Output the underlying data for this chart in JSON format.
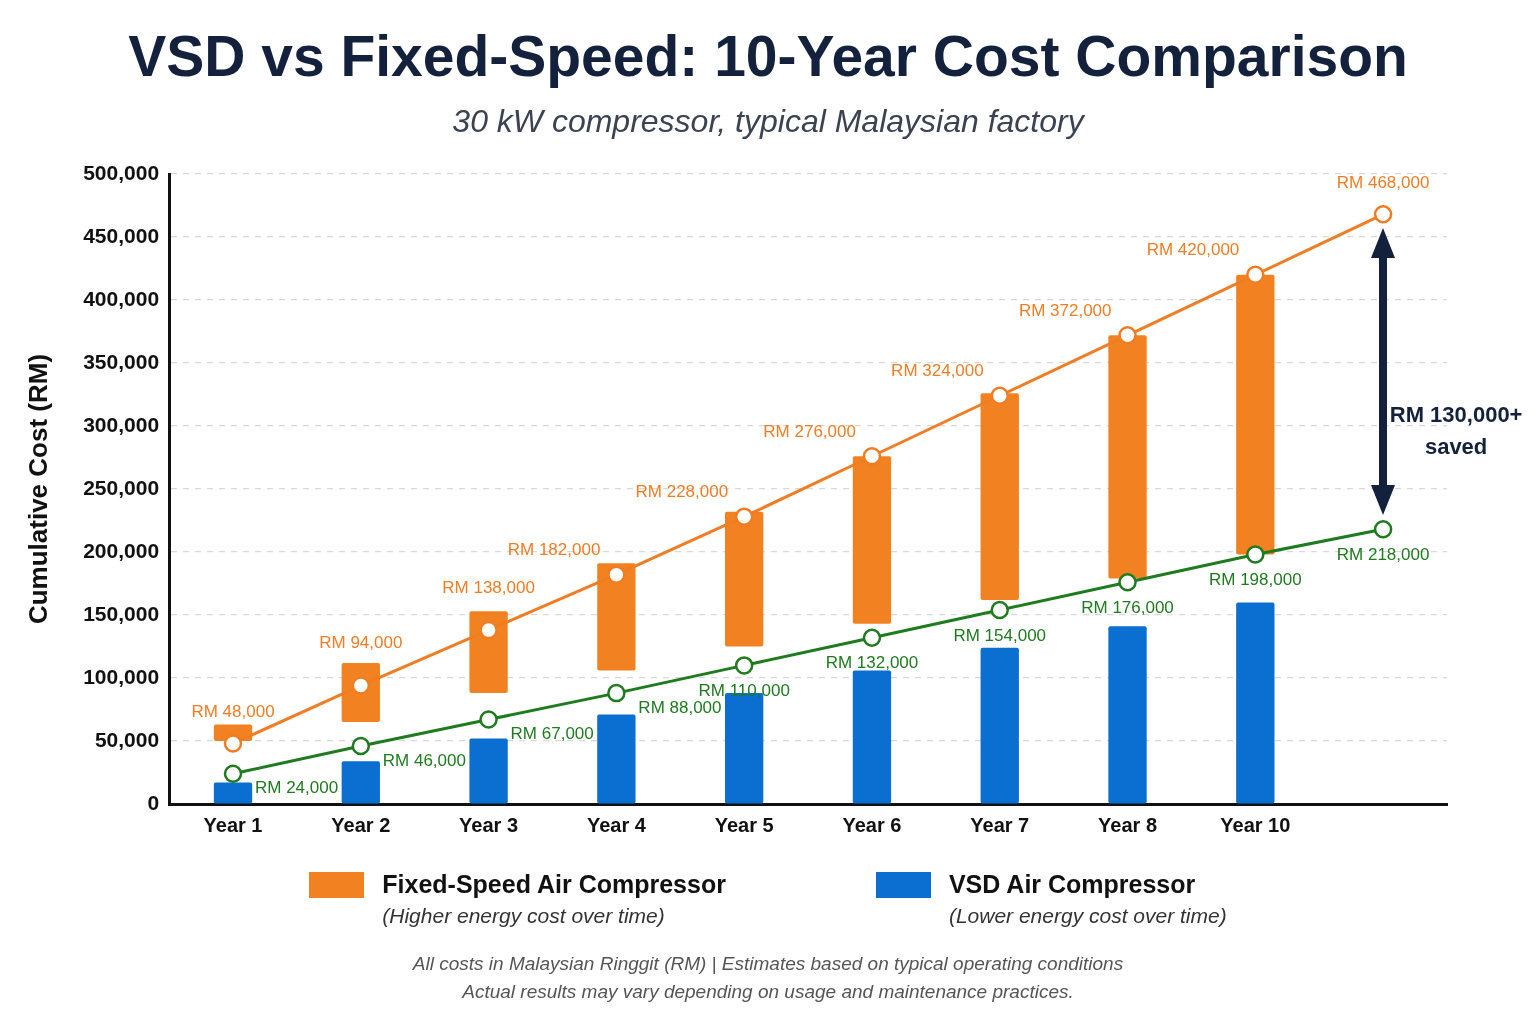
{
  "chart_data": {
    "type": "bar",
    "title": "VSD vs Fixed-Speed: 10-Year Cost Comparison",
    "subtitle": "30 kW compressor, typical Malaysian factory",
    "ylabel": "Cumulative Cost (RM)",
    "categories": [
      "Year 1",
      "Year 2",
      "Year 3",
      "Year 4",
      "Year 5",
      "Year 6",
      "Year 7",
      "Year 8",
      "Year 10",
      null
    ],
    "series": [
      {
        "name": "Fixed-Speed Air Compressor (Higher energy cost over time)",
        "type": "bar",
        "color": "#f28221",
        "base": [
          50000,
          65000,
          88000,
          106000,
          125000,
          143000,
          162000,
          179000,
          198000,
          null
        ],
        "values": [
          13000,
          47000,
          65000,
          85000,
          107000,
          133000,
          164000,
          193000,
          222000,
          null
        ]
      },
      {
        "name": "VSD Air Compressor (Lower energy cost over time)",
        "type": "bar",
        "color": "#0a6fd0",
        "values": [
          17000,
          34000,
          52000,
          71000,
          88000,
          106000,
          124000,
          141000,
          160000,
          null
        ]
      },
      {
        "type": "line",
        "color": "#f07d23",
        "values": [
          48000,
          94000,
          138000,
          182000,
          228000,
          276000,
          324000,
          372000,
          420000,
          468000
        ],
        "value_labels": [
          "RM 48,000",
          "RM 94,000",
          "RM 138,000",
          "RM 182,000",
          "RM 228,000",
          "RM 276,000",
          "RM 324,000",
          "RM 372,000",
          "RM 420,000",
          "RM 468,000"
        ]
      },
      {
        "type": "line",
        "color": "#1e7b1e",
        "values": [
          24000,
          46000,
          67000,
          88000,
          110000,
          132000,
          154000,
          176000,
          198000,
          218000
        ],
        "value_labels": [
          "RM 24,000",
          "RM 46,000",
          "RM 67,000",
          "RM 88,000",
          "RM 110,000",
          "RM 132,000",
          "RM 154,000",
          "RM 176,000",
          "RM 198,000",
          "RM 218,000"
        ]
      }
    ],
    "ylim": [
      0,
      500000
    ],
    "yticks": [
      {
        "value": 0,
        "label": "0"
      },
      {
        "value": 50000,
        "label": "50,000"
      },
      {
        "value": 100000,
        "label": "100,000"
      },
      {
        "value": 150000,
        "label": "150,000"
      },
      {
        "value": 200000,
        "label": "200,000"
      },
      {
        "value": 250000,
        "label": "250,000"
      },
      {
        "value": 300000,
        "label": "300,000"
      },
      {
        "value": 350000,
        "label": "350,000"
      },
      {
        "value": 400000,
        "label": "400,000"
      },
      {
        "value": 450000,
        "label": "450,000"
      },
      {
        "value": 500000,
        "label": "500,000"
      }
    ],
    "grid": "y",
    "legend": "bottom",
    "marker": "circle",
    "annotations": [
      "RM 130,000+ saved",
      "All costs in Malaysian Ringgit (RM) | Estimates based on typical operating conditions",
      "Actual results may vary depending on usage and maintenance practices."
    ]
  }
}
